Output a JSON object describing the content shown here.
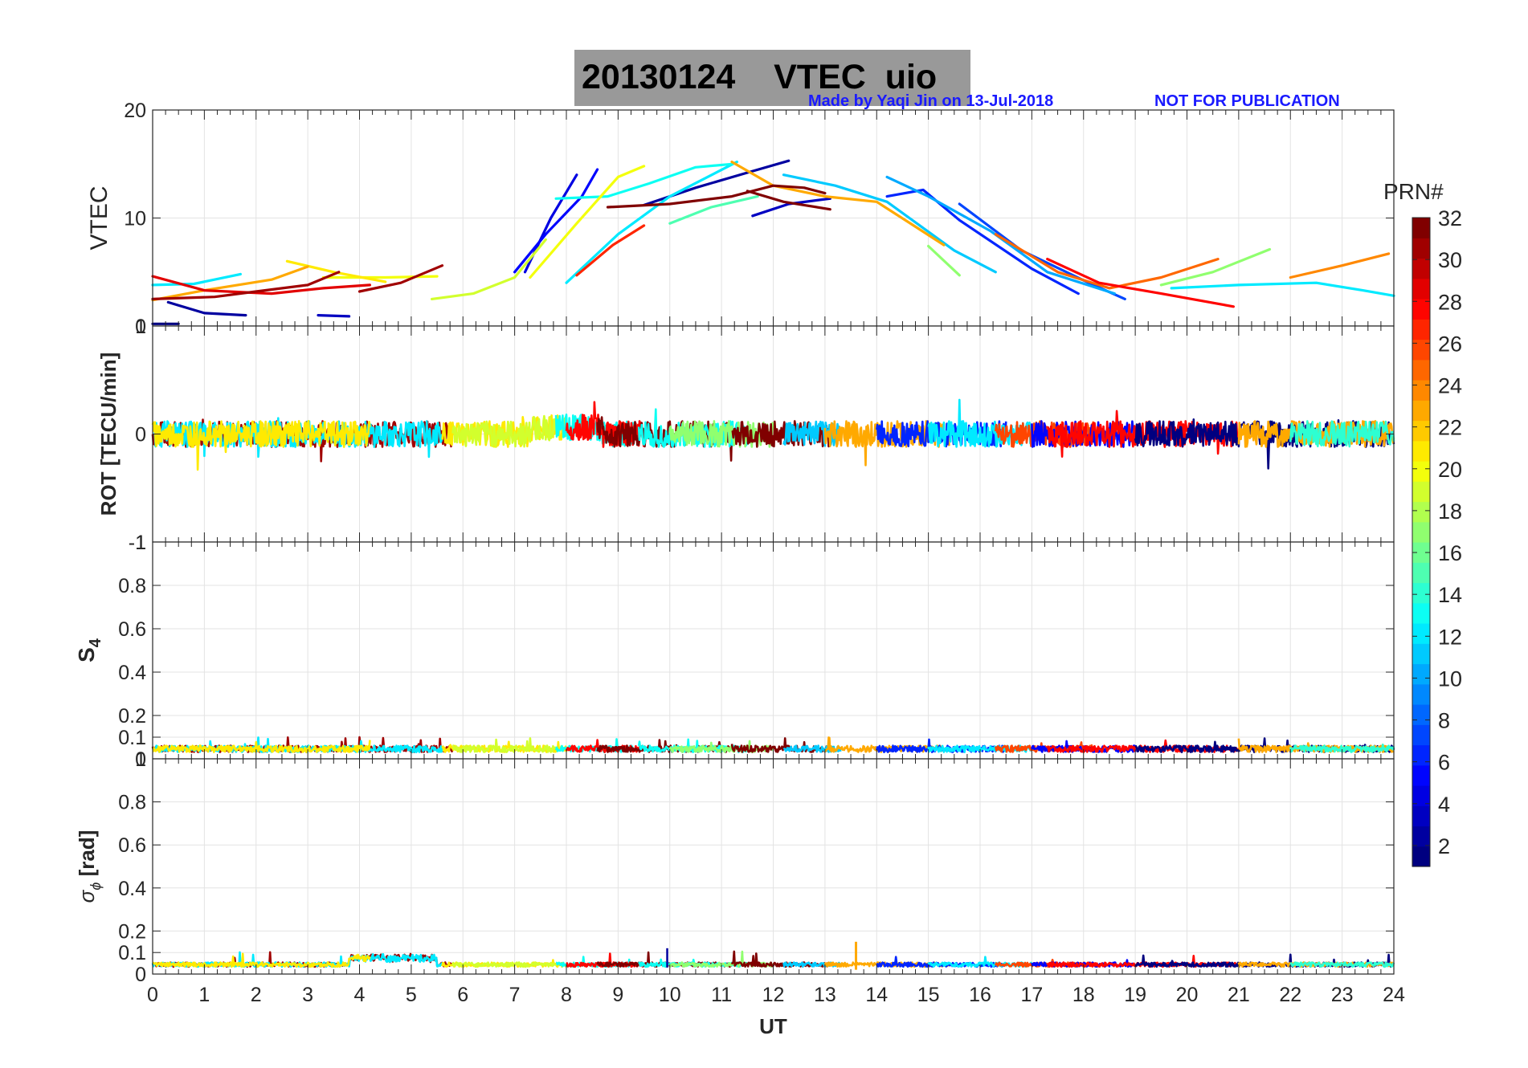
{
  "figure": {
    "title_date": "20130124",
    "title_main": "VTEC  uio",
    "credit": "Made by Yaqi Jin on 13-Jul-2018",
    "notice": "NOT FOR PUBLICATION"
  },
  "colorbar": {
    "label": "PRN#",
    "ticks": [
      2,
      4,
      6,
      8,
      10,
      12,
      14,
      16,
      18,
      20,
      22,
      24,
      26,
      28,
      30,
      32
    ],
    "range": [
      1,
      32
    ],
    "colormap": "jet"
  },
  "chart_data": [
    {
      "type": "line",
      "panel": "VTEC",
      "ylabel": "VTEC",
      "xlim": [
        0,
        24
      ],
      "ylim": [
        0,
        20
      ],
      "yticks": [
        0,
        10,
        20
      ],
      "grid": true,
      "series": [
        {
          "prn": 1,
          "x": [
            0,
            0.5
          ],
          "y": [
            0.2,
            0.2
          ]
        },
        {
          "prn": 2,
          "x": [
            0.3,
            1,
            1.8
          ],
          "y": [
            2.2,
            1.2,
            1.0
          ]
        },
        {
          "prn": 3,
          "x": [
            3.2,
            3.8
          ],
          "y": [
            1.0,
            0.9
          ]
        },
        {
          "prn": 4,
          "x": [
            7.2,
            7.7,
            8.2
          ],
          "y": [
            5.0,
            10.0,
            14.0
          ]
        },
        {
          "prn": 5,
          "x": [
            7.0,
            7.6,
            8.3,
            8.6
          ],
          "y": [
            5.0,
            8.5,
            12.0,
            14.5
          ]
        },
        {
          "prn": 2,
          "x": [
            9.5,
            10.5,
            11.5,
            12.3
          ],
          "y": [
            11.2,
            12.8,
            14.2,
            15.3
          ]
        },
        {
          "prn": 3,
          "x": [
            11.6,
            12.3,
            13.1
          ],
          "y": [
            10.2,
            11.3,
            11.8
          ]
        },
        {
          "prn": 6,
          "x": [
            14.2,
            14.9,
            15.6,
            17.0,
            17.9
          ],
          "y": [
            12.0,
            12.6,
            9.8,
            5.3,
            3.0
          ]
        },
        {
          "prn": 7,
          "x": [
            15.6,
            16.8,
            18.1,
            18.8
          ],
          "y": [
            11.3,
            7.0,
            4.0,
            2.5
          ]
        },
        {
          "prn": 10,
          "x": [
            14.2,
            15.0,
            16.2,
            17.3,
            18.6
          ],
          "y": [
            13.8,
            12.0,
            8.8,
            5.0,
            3.0
          ]
        },
        {
          "prn": 12,
          "x": [
            8.0,
            9.0,
            10.0,
            11.3
          ],
          "y": [
            4.0,
            8.5,
            12.0,
            15.2
          ]
        },
        {
          "prn": 13,
          "x": [
            7.8,
            8.8,
            9.6,
            10.5,
            11.2
          ],
          "y": [
            11.8,
            12.0,
            13.2,
            14.7,
            15.0
          ]
        },
        {
          "prn": 12,
          "x": [
            0,
            0.8,
            1.7
          ],
          "y": [
            3.8,
            3.9,
            4.8
          ]
        },
        {
          "prn": 11,
          "x": [
            12.2,
            13.2,
            14.2,
            15.5,
            16.3
          ],
          "y": [
            14.0,
            13.0,
            11.5,
            7.0,
            5.0
          ]
        },
        {
          "prn": 12,
          "x": [
            19.7,
            21.0,
            22.5,
            23.4,
            24.0
          ],
          "y": [
            3.5,
            3.8,
            4.0,
            3.3,
            2.8
          ]
        },
        {
          "prn": 15,
          "x": [
            10.0,
            10.8,
            11.7
          ],
          "y": [
            9.5,
            11.0,
            12.0
          ]
        },
        {
          "prn": 17,
          "x": [
            15.0,
            15.6
          ],
          "y": [
            7.4,
            4.7
          ]
        },
        {
          "prn": 17,
          "x": [
            19.5,
            20.5,
            21.6
          ],
          "y": [
            3.8,
            5.0,
            7.1
          ]
        },
        {
          "prn": 19,
          "x": [
            5.4,
            6.2,
            7.0,
            7.6
          ],
          "y": [
            2.5,
            3.0,
            4.5,
            8.0
          ]
        },
        {
          "prn": 20,
          "x": [
            7.3,
            8.2,
            9.0,
            9.5
          ],
          "y": [
            4.5,
            9.5,
            13.8,
            14.8
          ]
        },
        {
          "prn": 20,
          "x": [
            3.3,
            4.5,
            5.5
          ],
          "y": [
            4.5,
            4.5,
            4.6
          ]
        },
        {
          "prn": 21,
          "x": [
            2.6,
            3.5,
            4.5
          ],
          "y": [
            6.0,
            5.0,
            4.1
          ]
        },
        {
          "prn": 23,
          "x": [
            11.2,
            12.0,
            13.0,
            14.0,
            15.3
          ],
          "y": [
            15.2,
            13.0,
            12.0,
            11.5,
            7.5
          ]
        },
        {
          "prn": 23,
          "x": [
            0,
            1.0,
            2.3,
            3.0
          ],
          "y": [
            2.4,
            3.3,
            4.3,
            5.5
          ]
        },
        {
          "prn": 24,
          "x": [
            22.0,
            23.0,
            23.9
          ],
          "y": [
            4.5,
            5.6,
            6.7
          ]
        },
        {
          "prn": 25,
          "x": [
            16.3,
            17.5,
            18.5,
            19.5,
            20.6
          ],
          "y": [
            8.5,
            5.0,
            3.5,
            4.5,
            6.2
          ]
        },
        {
          "prn": 27,
          "x": [
            8.2,
            8.9,
            9.5
          ],
          "y": [
            4.7,
            7.5,
            9.3
          ]
        },
        {
          "prn": 28,
          "x": [
            17.3,
            18.3,
            19.5,
            20.9
          ],
          "y": [
            6.2,
            4.0,
            3.0,
            1.8
          ]
        },
        {
          "prn": 29,
          "x": [
            0,
            1.0,
            2.3,
            3.3,
            4.2
          ],
          "y": [
            4.6,
            3.3,
            3.0,
            3.5,
            3.8
          ]
        },
        {
          "prn": 31,
          "x": [
            0,
            1.2,
            2.0,
            3.0,
            3.6
          ],
          "y": [
            2.5,
            2.7,
            3.2,
            3.8,
            5.0
          ]
        },
        {
          "prn": 31,
          "x": [
            4.0,
            4.8,
            5.6
          ],
          "y": [
            3.2,
            4.0,
            5.6
          ]
        },
        {
          "prn": 32,
          "x": [
            8.8,
            10.0,
            11.2,
            12.0,
            12.6,
            13.0
          ],
          "y": [
            11.0,
            11.3,
            12.0,
            13.0,
            12.8,
            12.3
          ]
        },
        {
          "prn": 32,
          "x": [
            11.5,
            12.2,
            13.1
          ],
          "y": [
            12.5,
            11.5,
            10.8
          ]
        }
      ]
    },
    {
      "type": "line",
      "panel": "ROT",
      "ylabel": "ROT [TECU/min]",
      "xlim": [
        0,
        24
      ],
      "ylim": [
        -1,
        1
      ],
      "yticks": [
        -1,
        0,
        1
      ],
      "grid": true,
      "series_note_values": {
        "typical_center": 0,
        "typical_amplitude": 0.12,
        "max_spike": 0.3
      }
    },
    {
      "type": "line",
      "panel": "S4",
      "ylabel": "S",
      "ylabel_sub": "4",
      "xlim": [
        0,
        24
      ],
      "ylim": [
        0,
        1
      ],
      "yticks": [
        0,
        0.1,
        0.2,
        0.4,
        0.6,
        0.8,
        1
      ],
      "grid": true,
      "series_note_values": {
        "typical_level": 0.04,
        "max_spike": 0.1
      }
    },
    {
      "type": "line",
      "panel": "SigmaPhi",
      "ylabel": "[rad]",
      "ylabel_symbol": "σ",
      "ylabel_sub": "ϕ",
      "xlim": [
        0,
        24
      ],
      "ylim": [
        0,
        1
      ],
      "yticks": [
        0,
        0.1,
        0.2,
        0.4,
        0.6,
        0.8,
        1
      ],
      "xticks": [
        0,
        1,
        2,
        3,
        4,
        5,
        6,
        7,
        8,
        9,
        10,
        11,
        12,
        13,
        14,
        15,
        16,
        17,
        18,
        19,
        20,
        21,
        22,
        23,
        24
      ],
      "xlabel": "UT",
      "grid": true,
      "series_note_values": {
        "typical_level": 0.04,
        "max_spike": 0.15
      }
    }
  ]
}
